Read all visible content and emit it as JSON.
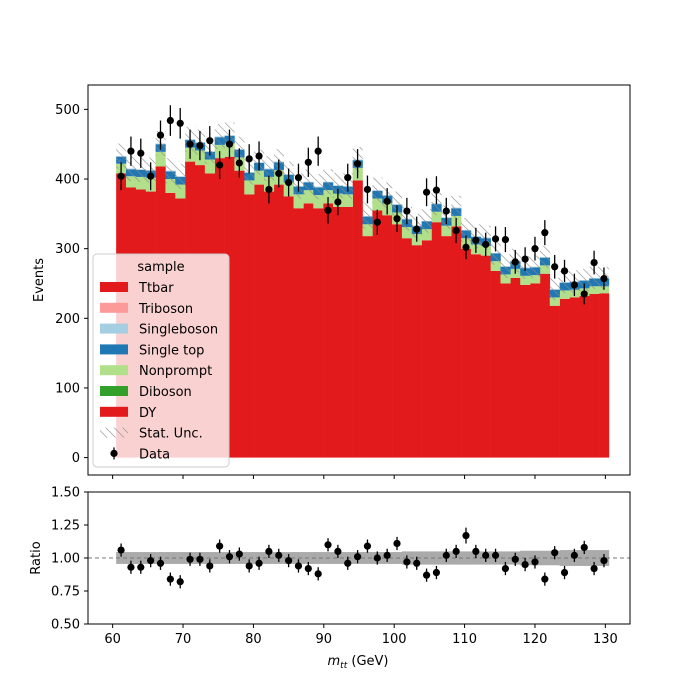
{
  "chart_data": [
    {
      "type": "bar",
      "subtype": "stacked-histogram",
      "ylabel": "Events",
      "ylim": [
        -25,
        535
      ],
      "xlim": [
        56.5,
        133.5
      ],
      "xticks": [
        60,
        70,
        80,
        90,
        100,
        110,
        120,
        130
      ],
      "xtick_labels": [
        "60",
        "70",
        "80",
        "90",
        "100",
        "110",
        "120",
        "130"
      ],
      "yticks": [
        0,
        100,
        200,
        300,
        400,
        500
      ],
      "ytick_labels": [
        "0",
        "100",
        "200",
        "300",
        "400",
        "500"
      ],
      "bin_edges": [
        60.5,
        61.9,
        63.3,
        64.7,
        66.1,
        67.5,
        68.9,
        70.3,
        71.7,
        73.1,
        74.5,
        75.9,
        77.3,
        78.7,
        80.1,
        81.5,
        82.9,
        84.3,
        85.7,
        87.1,
        88.5,
        89.9,
        91.3,
        92.7,
        94.1,
        95.5,
        96.9,
        98.3,
        99.7,
        101.1,
        102.5,
        103.9,
        105.3,
        106.7,
        108.1,
        109.5,
        110.9,
        112.3,
        113.7,
        115.1,
        116.5,
        117.9,
        119.3,
        120.7,
        122.1,
        123.5,
        124.9,
        126.3,
        127.7,
        129.1,
        130.5
      ],
      "series": [
        {
          "name": "Ttbar",
          "color": "#e31a1c",
          "values": [
            408,
            388,
            385,
            382,
            418,
            380,
            372,
            425,
            420,
            408,
            430,
            432,
            412,
            378,
            392,
            382,
            392,
            375,
            358,
            365,
            358,
            365,
            360,
            360,
            398,
            318,
            355,
            348,
            335,
            315,
            305,
            312,
            338,
            318,
            332,
            300,
            292,
            290,
            268,
            250,
            258,
            248,
            250,
            264,
            218,
            228,
            230,
            232,
            235,
            236
          ]
        },
        {
          "name": "Nonprompt",
          "color": "#b2df8a",
          "values": [
            14,
            16,
            18,
            20,
            21,
            20,
            20,
            20,
            21,
            20,
            19,
            19,
            19,
            20,
            20,
            21,
            21,
            20,
            20,
            19,
            19,
            19,
            19,
            18,
            18,
            17,
            17,
            17,
            17,
            16,
            16,
            16,
            15,
            15,
            15,
            15,
            14,
            14,
            14,
            13,
            13,
            13,
            12,
            12,
            12,
            12,
            11,
            11,
            11,
            10
          ]
        },
        {
          "name": "Single top",
          "color": "#1f78b4",
          "values": [
            10,
            10,
            10,
            10,
            11,
            11,
            11,
            11,
            11,
            11,
            11,
            11,
            11,
            11,
            11,
            11,
            11,
            11,
            11,
            11,
            11,
            11,
            11,
            11,
            11,
            11,
            11,
            11,
            11,
            11,
            11,
            11,
            11,
            11,
            11,
            11,
            11,
            11,
            11,
            11,
            11,
            11,
            11,
            11,
            11,
            11,
            11,
            11,
            11,
            11
          ]
        },
        {
          "name": "Singleboson",
          "color": "#a6cee3",
          "values": [
            1,
            1,
            1,
            1,
            1,
            1,
            1,
            1,
            1,
            1,
            1,
            1,
            1,
            1,
            1,
            1,
            1,
            1,
            1,
            1,
            1,
            1,
            1,
            1,
            1,
            1,
            1,
            1,
            1,
            1,
            1,
            1,
            1,
            1,
            1,
            1,
            1,
            1,
            1,
            1,
            1,
            1,
            1,
            1,
            1,
            1,
            1,
            1,
            1,
            1
          ]
        }
      ],
      "stat_unc_halfwidth": [
        18,
        18,
        18,
        18,
        18,
        18,
        18,
        18,
        18,
        18,
        18,
        18,
        18,
        18,
        18,
        18,
        18,
        18,
        18,
        18,
        18,
        18,
        18,
        18,
        18,
        18,
        18,
        18,
        18,
        17,
        17,
        17,
        17,
        17,
        17,
        17,
        17,
        17,
        17,
        17,
        17,
        16,
        16,
        16,
        16,
        16,
        16,
        16,
        16,
        16
      ],
      "data_points": {
        "name": "Data",
        "x": [
          61.2,
          62.6,
          64.0,
          65.4,
          66.8,
          68.2,
          69.6,
          71.0,
          72.4,
          73.8,
          75.2,
          76.6,
          78.0,
          79.4,
          80.8,
          82.2,
          83.6,
          85.0,
          86.4,
          87.8,
          89.2,
          90.6,
          92.0,
          93.4,
          94.8,
          96.2,
          97.6,
          99.0,
          100.4,
          101.8,
          103.2,
          104.6,
          106.0,
          107.4,
          108.8,
          110.2,
          111.6,
          113.0,
          114.4,
          115.8,
          117.2,
          118.6,
          120.0,
          121.4,
          122.8,
          124.2,
          125.6,
          127.0,
          128.4,
          129.8
        ],
        "y": [
          404,
          440,
          437,
          404,
          463,
          484,
          480,
          450,
          448,
          455,
          420,
          450,
          423,
          429,
          433,
          385,
          408,
          395,
          402,
          424,
          440,
          355,
          367,
          402,
          422,
          385,
          338,
          368,
          343,
          354,
          328,
          381,
          384,
          354,
          326,
          302,
          312,
          306,
          314,
          313,
          281,
          285,
          300,
          323,
          274,
          268,
          248,
          235,
          280,
          257
        ],
        "yerr": [
          20,
          21,
          21,
          20,
          21,
          22,
          22,
          21,
          21,
          21,
          20,
          21,
          21,
          21,
          21,
          20,
          20,
          20,
          20,
          21,
          21,
          19,
          19,
          20,
          21,
          20,
          18,
          19,
          19,
          19,
          18,
          20,
          20,
          19,
          18,
          17,
          18,
          17,
          18,
          18,
          17,
          17,
          17,
          18,
          17,
          16,
          16,
          15,
          17,
          16
        ]
      },
      "legend": {
        "title": "sample",
        "placement": "lower-left",
        "entries": [
          {
            "label": "Ttbar",
            "kind": "patch",
            "color": "#e31a1c"
          },
          {
            "label": "Triboson",
            "kind": "patch",
            "color": "#fb9a99"
          },
          {
            "label": "Singleboson",
            "kind": "patch",
            "color": "#a6cee3"
          },
          {
            "label": "Single top",
            "kind": "patch",
            "color": "#1f78b4"
          },
          {
            "label": "Nonprompt",
            "kind": "patch",
            "color": "#b2df8a"
          },
          {
            "label": "Diboson",
            "kind": "patch",
            "color": "#33a02c"
          },
          {
            "label": "DY",
            "kind": "patch",
            "color": "#e31a1c"
          },
          {
            "label": "Stat. Unc.",
            "kind": "hatch",
            "color": "#888888"
          },
          {
            "label": "Data",
            "kind": "errorbar",
            "color": "#000000"
          }
        ]
      }
    },
    {
      "type": "scatter",
      "subtype": "ratio",
      "ylabel": "Ratio",
      "xlabel": "m_{tt} (GeV)",
      "xlabel_main": "m",
      "xlabel_sub": "tt",
      "xlabel_unit": " (GeV)",
      "ylim": [
        0.5,
        1.5
      ],
      "xlim": [
        56.5,
        133.5
      ],
      "xticks": [
        60,
        70,
        80,
        90,
        100,
        110,
        120,
        130
      ],
      "xtick_labels": [
        "60",
        "70",
        "80",
        "90",
        "100",
        "110",
        "120",
        "130"
      ],
      "yticks": [
        0.5,
        0.75,
        1.0,
        1.25,
        1.5
      ],
      "ytick_labels": [
        "0.50",
        "0.75",
        "1.00",
        "1.25",
        "1.50"
      ],
      "reference_line": 1.0,
      "x": [
        61.2,
        62.6,
        64.0,
        65.4,
        66.8,
        68.2,
        69.6,
        71.0,
        72.4,
        73.8,
        75.2,
        76.6,
        78.0,
        79.4,
        80.8,
        82.2,
        83.6,
        85.0,
        86.4,
        87.8,
        89.2,
        90.6,
        92.0,
        93.4,
        94.8,
        96.2,
        97.6,
        99.0,
        100.4,
        101.8,
        103.2,
        104.6,
        106.0,
        107.4,
        108.8,
        110.2,
        111.6,
        113.0,
        114.4,
        115.8,
        117.2,
        118.6,
        120.0,
        121.4,
        122.8,
        124.2,
        125.6,
        127.0,
        128.4,
        129.8
      ],
      "y": [
        1.06,
        0.93,
        0.93,
        0.98,
        0.96,
        0.84,
        0.82,
        0.99,
        0.99,
        0.94,
        1.09,
        1.01,
        1.03,
        0.94,
        0.96,
        1.05,
        1.02,
        0.98,
        0.94,
        0.92,
        0.88,
        1.1,
        1.05,
        0.96,
        1.01,
        1.09,
        1.0,
        1.02,
        1.11,
        0.97,
        0.96,
        0.87,
        0.89,
        1.02,
        1.05,
        1.17,
        1.05,
        1.02,
        1.02,
        0.92,
        0.99,
        0.95,
        0.97,
        0.84,
        1.04,
        0.89,
        1.02,
        1.08,
        0.92,
        0.98
      ],
      "yerr": [
        0.05,
        0.05,
        0.05,
        0.05,
        0.05,
        0.05,
        0.05,
        0.05,
        0.05,
        0.05,
        0.05,
        0.05,
        0.05,
        0.05,
        0.05,
        0.05,
        0.05,
        0.05,
        0.05,
        0.05,
        0.05,
        0.05,
        0.05,
        0.05,
        0.05,
        0.05,
        0.05,
        0.05,
        0.05,
        0.05,
        0.05,
        0.05,
        0.05,
        0.05,
        0.05,
        0.06,
        0.05,
        0.05,
        0.05,
        0.05,
        0.05,
        0.05,
        0.05,
        0.05,
        0.05,
        0.05,
        0.05,
        0.05,
        0.05,
        0.05
      ],
      "band_halfwidth": [
        0.045,
        0.045,
        0.045,
        0.045,
        0.045,
        0.045,
        0.045,
        0.045,
        0.045,
        0.045,
        0.045,
        0.045,
        0.045,
        0.045,
        0.045,
        0.045,
        0.045,
        0.045,
        0.045,
        0.045,
        0.045,
        0.045,
        0.045,
        0.045,
        0.045,
        0.045,
        0.045,
        0.045,
        0.045,
        0.05,
        0.05,
        0.05,
        0.05,
        0.05,
        0.05,
        0.05,
        0.05,
        0.05,
        0.05,
        0.05,
        0.05,
        0.055,
        0.055,
        0.055,
        0.055,
        0.06,
        0.06,
        0.06,
        0.06,
        0.06
      ]
    }
  ]
}
